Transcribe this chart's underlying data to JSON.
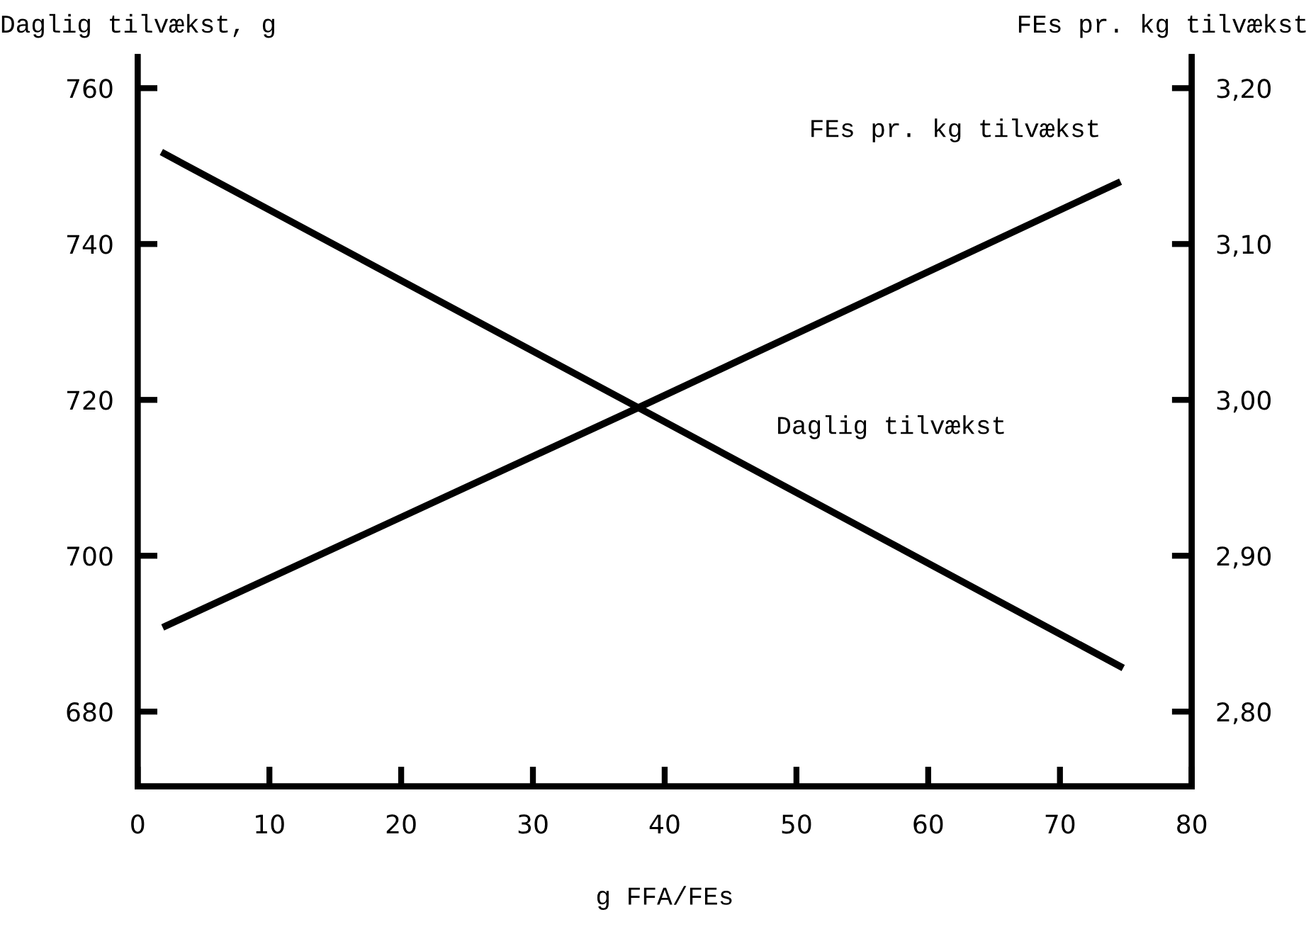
{
  "chart_data": {
    "type": "line",
    "xlabel": "g FFA/FEs",
    "ylabel": "Daglig tilvækst, g",
    "y2label": "FEs pr. kg tilvækst",
    "xlim": [
      0,
      80
    ],
    "xticks": [
      0,
      10,
      20,
      30,
      40,
      50,
      60,
      70,
      80
    ],
    "ylim": [
      670.4,
      764
    ],
    "yticks": [
      680,
      700,
      720,
      740,
      760
    ],
    "y2lim": [
      2.752,
      3.22
    ],
    "y2ticks": [
      {
        "value": 2.8,
        "label": "2,80"
      },
      {
        "value": 2.9,
        "label": "2,90"
      },
      {
        "value": 3.0,
        "label": "3,00"
      },
      {
        "value": 3.1,
        "label": "3,10"
      },
      {
        "value": 3.2,
        "label": "3,20"
      }
    ],
    "grid": false,
    "legend": false,
    "marker": "none",
    "line_style": "solid",
    "series": [
      {
        "name": "Daglig tilvækst",
        "color": "#000000",
        "x": [
          1.8,
          38,
          74.8
        ],
        "values": [
          751.8,
          719,
          685.6
        ]
      },
      {
        "name": "FEs pr. kg tilvækst",
        "color": "#000000",
        "axis": "y2",
        "x": [
          1.9,
          38,
          74.6
        ],
        "values": [
          2.854,
          2.995,
          3.14
        ]
      }
    ]
  }
}
